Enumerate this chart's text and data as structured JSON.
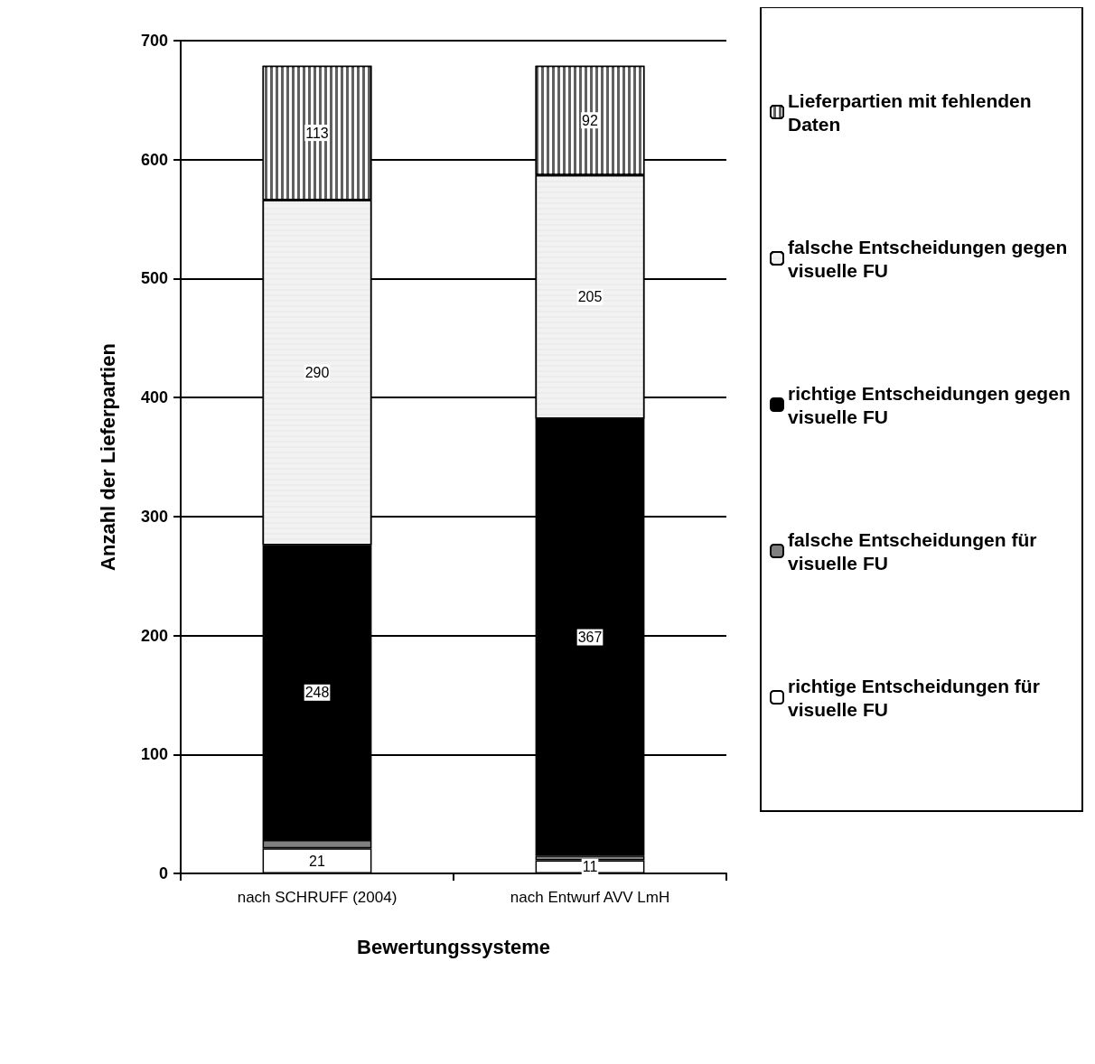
{
  "chart_data": {
    "type": "bar",
    "stacked": true,
    "xlabel": "Bewertungssysteme",
    "ylabel": "Anzahl der Lieferpartien",
    "categories": [
      "nach SCHRUFF (2004)",
      "nach Entwurf AVV LmH"
    ],
    "series": [
      {
        "name": "richtige Entscheidungen für visuelle FU",
        "color": "#ffffff",
        "values": [
          21,
          11
        ],
        "value_labels": [
          "21",
          "11"
        ]
      },
      {
        "name": "falsche Entscheidungen für visuelle FU",
        "color": "#808080",
        "values": [
          7,
          4
        ],
        "value_labels": [
          null,
          null
        ]
      },
      {
        "name": "richtige Entscheidungen gegen visuelle FU",
        "color": "#000000",
        "values": [
          248,
          367
        ],
        "value_labels": [
          "248",
          "367"
        ]
      },
      {
        "name": "falsche Entscheidungen gegen visuelle FU",
        "color": "#f2f2f2",
        "values": [
          290,
          205
        ],
        "value_labels": [
          "290",
          "205"
        ]
      },
      {
        "name": "Lieferpartien mit fehlenden Daten",
        "color": "#606060",
        "values": [
          113,
          92
        ],
        "value_labels": [
          "113",
          "92"
        ]
      }
    ],
    "ylim": [
      0,
      700
    ],
    "yticks": [
      0,
      100,
      200,
      300,
      400,
      500,
      600,
      700
    ],
    "grid": "y",
    "legend": "right"
  }
}
